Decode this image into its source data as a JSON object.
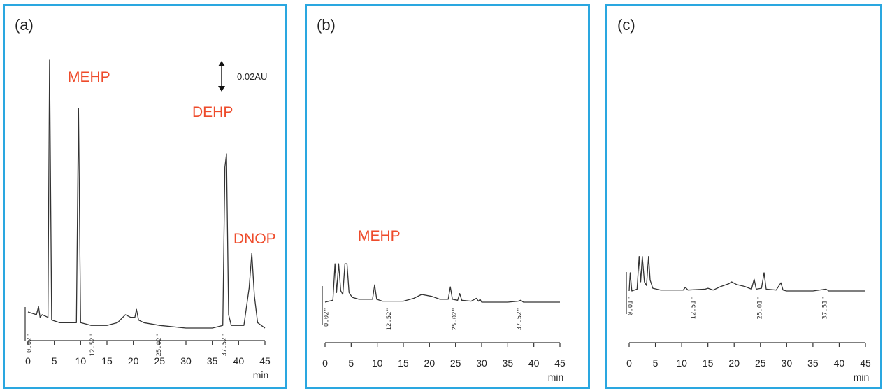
{
  "chart_data": [
    {
      "type": "line",
      "panel_label": "(a)",
      "xlabel": "min",
      "xlim": [
        0,
        45
      ],
      "xticks": [
        0,
        5,
        10,
        15,
        20,
        25,
        30,
        35,
        40,
        45
      ],
      "scale_bar_label": "0.02AU",
      "time_stamps": [
        "0.02\"",
        "12.52\"",
        "25.02\"",
        "37.52\""
      ],
      "stamp_x": [
        0.6,
        12.6,
        25.2,
        37.6
      ],
      "peaks": [
        {
          "name": "MEHP",
          "x": 9.6,
          "height": 0.78
        },
        {
          "name": "DEHP",
          "x": 37.7,
          "height": 0.63
        },
        {
          "name": "DNOP",
          "x": 42.5,
          "height": 0.27
        }
      ],
      "trace": [
        [
          0,
          0.06
        ],
        [
          1.6,
          0.05
        ],
        [
          2.0,
          0.08
        ],
        [
          2.3,
          0.04
        ],
        [
          2.7,
          0.05
        ],
        [
          3.8,
          0.04
        ],
        [
          4.1,
          1.0
        ],
        [
          4.5,
          0.03
        ],
        [
          6,
          0.02
        ],
        [
          9.2,
          0.02
        ],
        [
          9.6,
          0.82
        ],
        [
          10.0,
          0.02
        ],
        [
          12,
          0.01
        ],
        [
          15,
          0.01
        ],
        [
          17,
          0.02
        ],
        [
          18.5,
          0.05
        ],
        [
          19.5,
          0.04
        ],
        [
          20.3,
          0.04
        ],
        [
          20.6,
          0.07
        ],
        [
          21,
          0.03
        ],
        [
          22,
          0.02
        ],
        [
          25,
          0.01
        ],
        [
          30,
          0.0
        ],
        [
          35,
          0.0
        ],
        [
          37.0,
          0.01
        ],
        [
          37.4,
          0.6
        ],
        [
          37.7,
          0.65
        ],
        [
          38.1,
          0.05
        ],
        [
          38.6,
          0.01
        ],
        [
          41,
          0.01
        ],
        [
          42.0,
          0.15
        ],
        [
          42.5,
          0.28
        ],
        [
          43.0,
          0.12
        ],
        [
          43.6,
          0.02
        ],
        [
          45,
          0.0
        ]
      ]
    },
    {
      "type": "line",
      "panel_label": "(b)",
      "xlabel": "min",
      "xlim": [
        0,
        45
      ],
      "xticks": [
        0,
        5,
        10,
        15,
        20,
        25,
        30,
        35,
        40,
        45
      ],
      "time_stamps": [
        "0.02\"",
        "12.52\"",
        "25.02\"",
        "37.52\""
      ],
      "stamp_x": [
        0.6,
        12.6,
        25.2,
        37.6
      ],
      "peaks": [
        {
          "name": "MEHP",
          "x": 9.5,
          "height": 0.18
        }
      ],
      "trace": [
        [
          0,
          0.0
        ],
        [
          1.5,
          0.02
        ],
        [
          1.9,
          0.4
        ],
        [
          2.2,
          0.1
        ],
        [
          2.6,
          0.4
        ],
        [
          3.0,
          0.12
        ],
        [
          3.4,
          0.08
        ],
        [
          3.8,
          0.4
        ],
        [
          4.2,
          0.4
        ],
        [
          4.6,
          0.1
        ],
        [
          5.2,
          0.05
        ],
        [
          6.5,
          0.03
        ],
        [
          9.1,
          0.03
        ],
        [
          9.5,
          0.18
        ],
        [
          9.9,
          0.03
        ],
        [
          11,
          0.01
        ],
        [
          15,
          0.01
        ],
        [
          17,
          0.04
        ],
        [
          18.5,
          0.08
        ],
        [
          20.5,
          0.06
        ],
        [
          22,
          0.03
        ],
        [
          23.6,
          0.03
        ],
        [
          24.0,
          0.16
        ],
        [
          24.4,
          0.03
        ],
        [
          25.4,
          0.02
        ],
        [
          25.8,
          0.09
        ],
        [
          26.2,
          0.02
        ],
        [
          28,
          0.01
        ],
        [
          29.0,
          0.04
        ],
        [
          29.4,
          0.01
        ],
        [
          29.7,
          0.03
        ],
        [
          30,
          0.0
        ],
        [
          35,
          0.0
        ],
        [
          37.0,
          0.01
        ],
        [
          37.5,
          0.02
        ],
        [
          38,
          0.0
        ],
        [
          45,
          0.0
        ]
      ]
    },
    {
      "type": "line",
      "panel_label": "(c)",
      "xlabel": "min",
      "xlim": [
        0,
        45
      ],
      "xticks": [
        0,
        5,
        10,
        15,
        20,
        25,
        30,
        35,
        40,
        45
      ],
      "time_stamps": [
        "0.01\"",
        "12.51\"",
        "25.01\"",
        "37.51\""
      ],
      "stamp_x": [
        0.6,
        12.6,
        25.2,
        37.6
      ],
      "peaks": [],
      "trace": [
        [
          0,
          0.0
        ],
        [
          0.2,
          0.2
        ],
        [
          0.5,
          0.0
        ],
        [
          1.5,
          0.02
        ],
        [
          1.9,
          0.38
        ],
        [
          2.2,
          0.1
        ],
        [
          2.5,
          0.38
        ],
        [
          2.9,
          0.1
        ],
        [
          3.3,
          0.06
        ],
        [
          3.7,
          0.38
        ],
        [
          4.0,
          0.12
        ],
        [
          4.5,
          0.03
        ],
        [
          6,
          0.01
        ],
        [
          10.3,
          0.01
        ],
        [
          10.7,
          0.04
        ],
        [
          11.2,
          0.01
        ],
        [
          14.5,
          0.02
        ],
        [
          15,
          0.03
        ],
        [
          16,
          0.01
        ],
        [
          17.5,
          0.05
        ],
        [
          19,
          0.08
        ],
        [
          19.5,
          0.1
        ],
        [
          20.5,
          0.07
        ],
        [
          22,
          0.05
        ],
        [
          23.3,
          0.02
        ],
        [
          23.8,
          0.13
        ],
        [
          24.2,
          0.02
        ],
        [
          25.2,
          0.03
        ],
        [
          25.7,
          0.2
        ],
        [
          26.1,
          0.02
        ],
        [
          28,
          0.01
        ],
        [
          28.9,
          0.09
        ],
        [
          29.3,
          0.01
        ],
        [
          30,
          0.0
        ],
        [
          35,
          0.0
        ],
        [
          37.5,
          0.02
        ],
        [
          38,
          0.0
        ],
        [
          45,
          0.0
        ]
      ]
    }
  ]
}
